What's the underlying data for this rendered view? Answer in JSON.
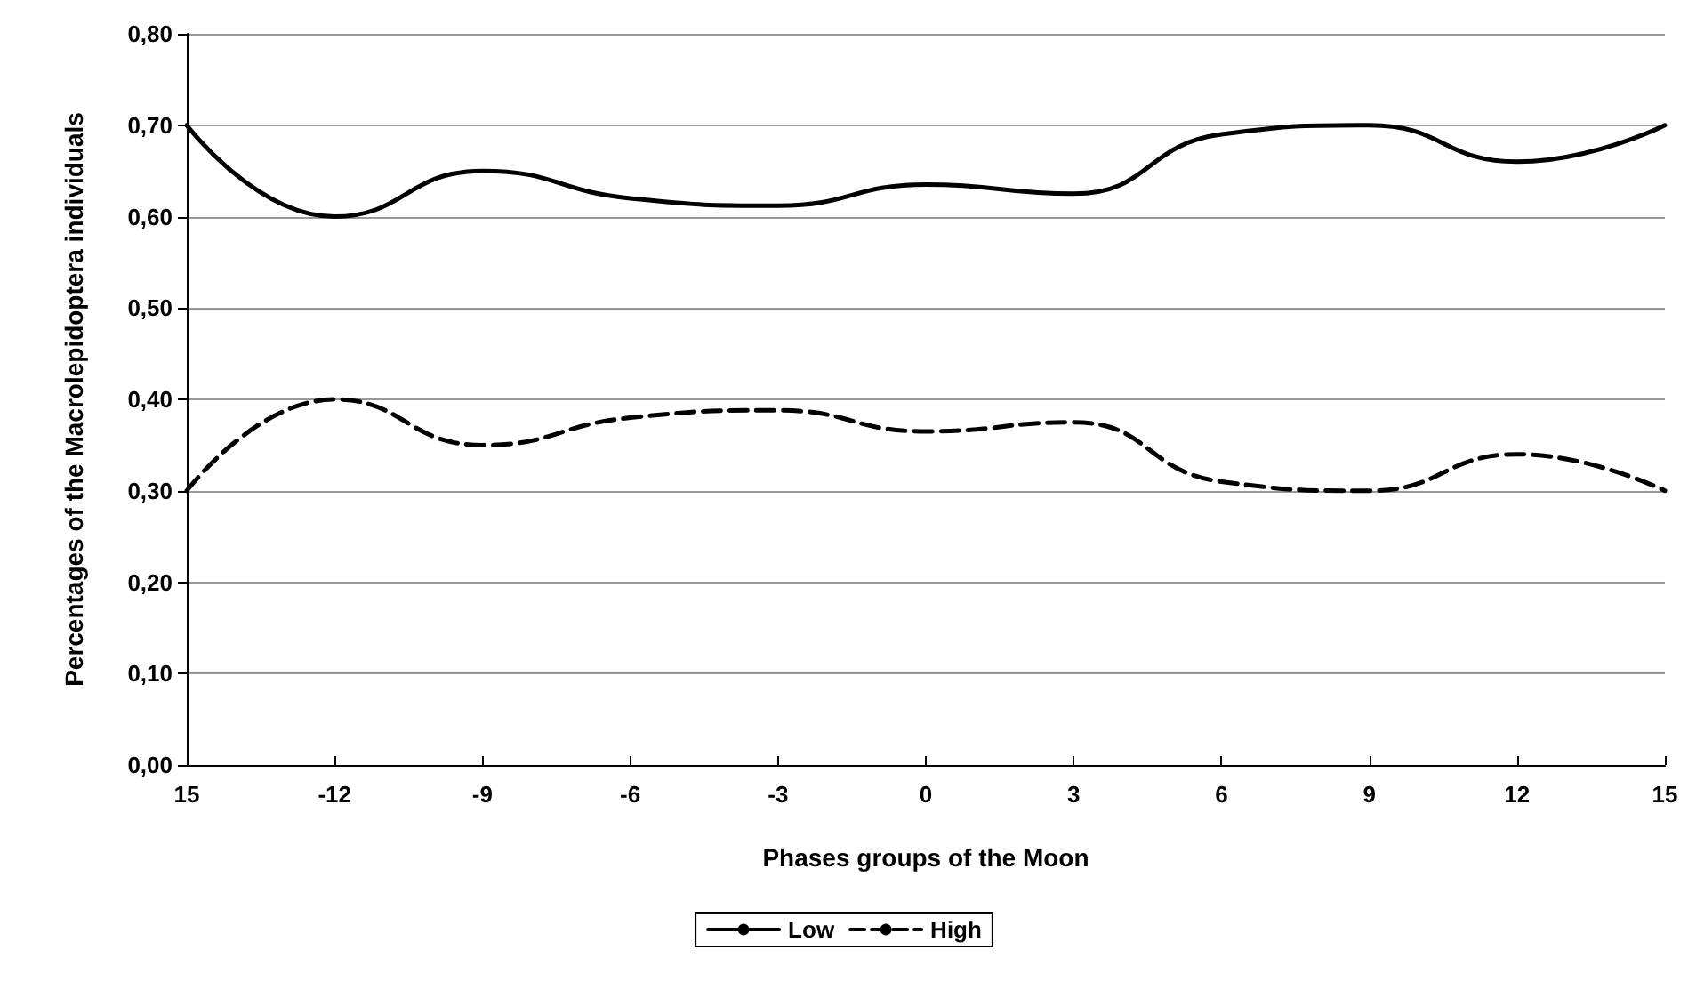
{
  "chart_data": {
    "type": "line",
    "xlabel": "Phases groups of the Moon",
    "ylabel": "Percentages of the Macrolepidoptera individuals",
    "categories": [
      "15",
      "-12",
      "-9",
      "-6",
      "-3",
      "0",
      "3",
      "6",
      "9",
      "12",
      "15"
    ],
    "series": [
      {
        "name": "Low",
        "color": "#000000",
        "line_style": "solid",
        "values": [
          0.7,
          0.6,
          0.65,
          0.62,
          0.612,
          0.635,
          0.625,
          0.69,
          0.7,
          0.66,
          0.7
        ]
      },
      {
        "name": "High",
        "color": "#000000",
        "line_style": "dashed",
        "values": [
          0.3,
          0.4,
          0.35,
          0.38,
          0.388,
          0.365,
          0.375,
          0.31,
          0.3,
          0.34,
          0.3
        ]
      }
    ],
    "ylim": [
      0,
      0.8
    ],
    "yticks": [
      {
        "value": 0,
        "label": "0,00"
      },
      {
        "value": 0.1,
        "label": "0,10"
      },
      {
        "value": 0.2,
        "label": "0,20"
      },
      {
        "value": 0.3,
        "label": "0,30"
      },
      {
        "value": 0.4,
        "label": "0,40"
      },
      {
        "value": 0.5,
        "label": "0,50"
      },
      {
        "value": 0.6,
        "label": "0,60"
      },
      {
        "value": 0.7,
        "label": "0,70"
      },
      {
        "value": 0.8,
        "label": "0,80"
      }
    ],
    "grid": "y",
    "legend": "bottom",
    "marker": "none"
  }
}
